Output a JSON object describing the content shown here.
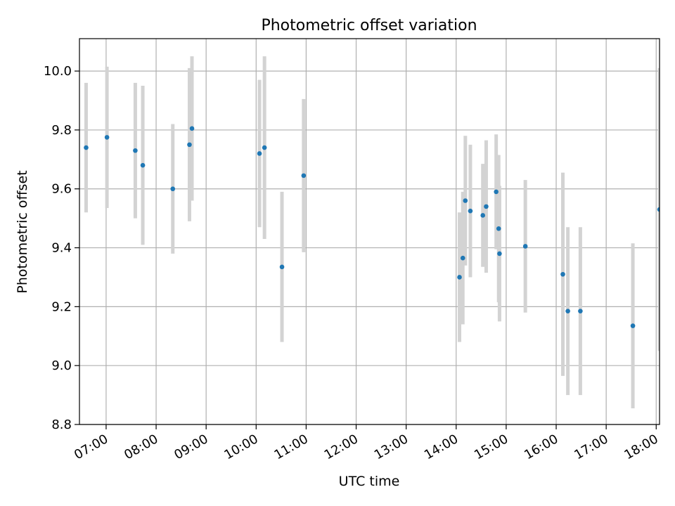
{
  "chart_data": {
    "type": "scatter",
    "title": "Photometric offset variation",
    "xlabel": "UTC time",
    "ylabel": "Photometric offset",
    "x_tick_labels": [
      "07:00",
      "08:00",
      "09:00",
      "10:00",
      "11:00",
      "12:00",
      "13:00",
      "14:00",
      "15:00",
      "16:00",
      "17:00",
      "18:00"
    ],
    "y_tick_labels": [
      "8.8",
      "9.0",
      "9.2",
      "9.4",
      "9.6",
      "9.8",
      "10.0"
    ],
    "x_range": [
      "06:28",
      "18:04"
    ],
    "ylim": [
      8.8,
      10.11
    ],
    "grid": true,
    "colors": {
      "point": "#1f77b4",
      "errorbar": "#d3d3d3",
      "grid": "#b0b0b0"
    },
    "points": [
      {
        "x": "06:36",
        "y": 9.74,
        "err": 0.22
      },
      {
        "x": "07:01",
        "y": 9.775,
        "err": 0.24
      },
      {
        "x": "07:35",
        "y": 9.73,
        "err": 0.23
      },
      {
        "x": "07:44",
        "y": 9.68,
        "err": 0.27
      },
      {
        "x": "08:20",
        "y": 9.6,
        "err": 0.22
      },
      {
        "x": "08:40",
        "y": 9.75,
        "err": 0.26
      },
      {
        "x": "08:43",
        "y": 9.805,
        "err": 0.245
      },
      {
        "x": "10:04",
        "y": 9.72,
        "err": 0.25
      },
      {
        "x": "10:10",
        "y": 9.74,
        "err": 0.31
      },
      {
        "x": "10:31",
        "y": 9.335,
        "err": 0.255
      },
      {
        "x": "10:57",
        "y": 9.645,
        "err": 0.26
      },
      {
        "x": "14:04",
        "y": 9.3,
        "err": 0.22
      },
      {
        "x": "14:08",
        "y": 9.365,
        "err": 0.225
      },
      {
        "x": "14:11",
        "y": 9.56,
        "err": 0.22
      },
      {
        "x": "14:17",
        "y": 9.525,
        "err": 0.225
      },
      {
        "x": "14:32",
        "y": 9.51,
        "err": 0.175
      },
      {
        "x": "14:36",
        "y": 9.54,
        "err": 0.225
      },
      {
        "x": "14:48",
        "y": 9.59,
        "err": 0.195
      },
      {
        "x": "14:51",
        "y": 9.465,
        "err": 0.25
      },
      {
        "x": "14:52",
        "y": 9.38,
        "err": 0.23
      },
      {
        "x": "15:23",
        "y": 9.405,
        "err": 0.225
      },
      {
        "x": "16:08",
        "y": 9.31,
        "err": 0.345
      },
      {
        "x": "16:14",
        "y": 9.185,
        "err": 0.285
      },
      {
        "x": "16:29",
        "y": 9.185,
        "err": 0.285
      },
      {
        "x": "17:32",
        "y": 9.135,
        "err": 0.28
      },
      {
        "x": "18:04",
        "y": 9.53,
        "err": 0.48
      }
    ]
  }
}
